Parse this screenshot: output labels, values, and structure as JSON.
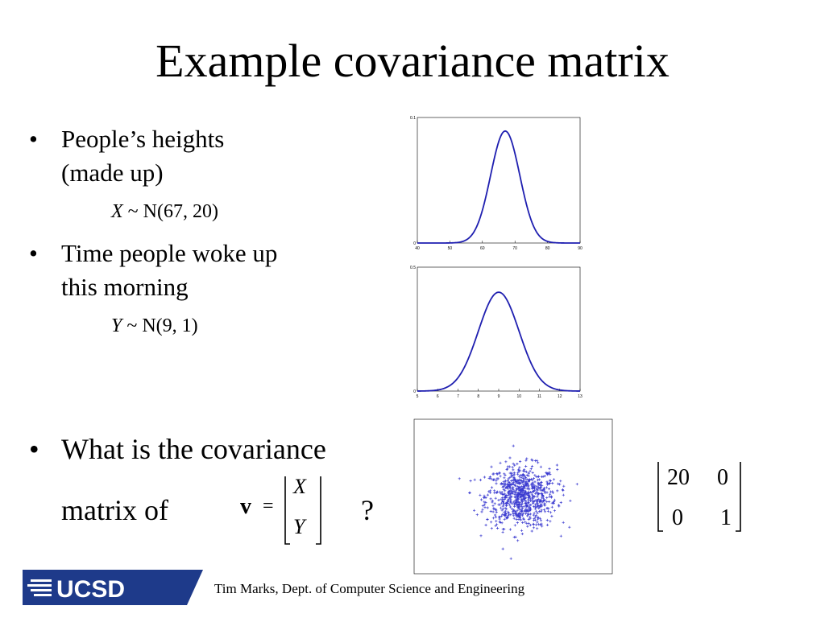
{
  "slide": {
    "title": "Example covariance matrix",
    "bullets": [
      {
        "line1": "People’s heights",
        "line2": "(made up)",
        "dist_var": "X",
        "dist_rest": " ~ N(67, 20)"
      },
      {
        "line1": "Time people woke up",
        "line2": "this morning",
        "dist_var": "Y",
        "dist_rest": " ~ N(9, 1)"
      }
    ],
    "question": {
      "line1": "What is the covariance",
      "line2": "matrix of",
      "vector_symbol": "v",
      "equals": "=",
      "entry_top": "X",
      "entry_bottom": "Y",
      "qmark": "?"
    },
    "answer_matrix": {
      "r1c1": "20",
      "r1c2": "0",
      "r2c1": "0",
      "r2c2": "1"
    },
    "footer": "Tim Marks, Dept. of Computer Science and Engineering",
    "logo_text": "UCSD"
  },
  "colors": {
    "curve": "#1f1fb0",
    "scatter": "#3a3ad0",
    "logo_bg": "#1e3a8a"
  },
  "chart_data": [
    {
      "type": "line",
      "description_of_series": "normal pdf",
      "mean": 67,
      "variance": 20,
      "xlim": [
        40,
        90
      ],
      "ylim": [
        0,
        0.1
      ],
      "xticks": [
        "40",
        "50",
        "60",
        "70",
        "80",
        "90"
      ],
      "yticks": [
        "0",
        "0.1"
      ]
    },
    {
      "type": "line",
      "mean": 9,
      "variance": 1,
      "xlim": [
        5,
        13
      ],
      "ylim": [
        0,
        0.5
      ],
      "xticks": [
        "5",
        "6",
        "7",
        "8",
        "9",
        "10",
        "11",
        "12",
        "13"
      ],
      "yticks": [
        "0",
        "0.5"
      ]
    },
    {
      "type": "scatter",
      "marker": "+",
      "mean": [
        67,
        9
      ],
      "covariance": [
        [
          20,
          0
        ],
        [
          0,
          1
        ]
      ],
      "xlim": [
        40,
        90
      ],
      "ylim": [
        4,
        14
      ]
    }
  ]
}
